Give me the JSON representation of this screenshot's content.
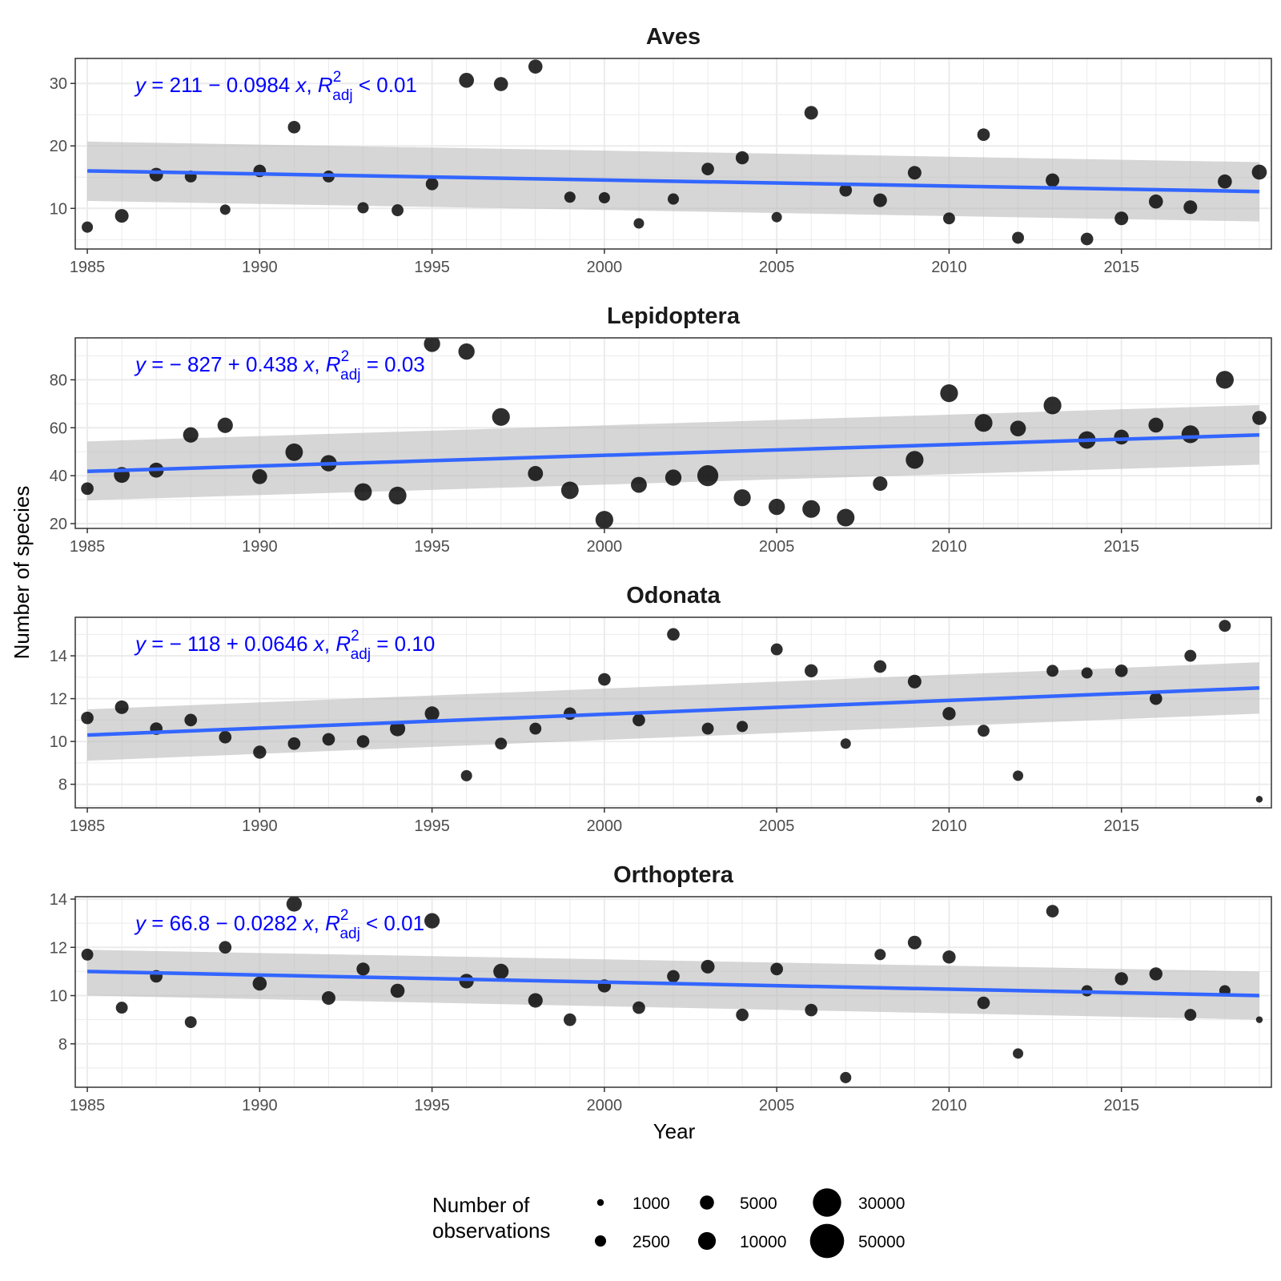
{
  "chart_data": {
    "type": "scatter",
    "layout": "faceted",
    "xlabel": "Year",
    "ylabel": "Number of species",
    "xlim": [
      1985,
      2019
    ],
    "xticks": [
      1985,
      1990,
      1995,
      2000,
      2005,
      2010,
      2015
    ],
    "point_color": "#000000",
    "fit_color": "#3366ff",
    "band_color": "#bdbdbd",
    "equation_color": "#0000ff",
    "legend": {
      "title_lines": [
        "Number of",
        "observations"
      ],
      "position": "bottom",
      "entries": [
        {
          "label": "1000",
          "value": 1000
        },
        {
          "label": "2500",
          "value": 2500
        },
        {
          "label": "5000",
          "value": 5000
        },
        {
          "label": "10000",
          "value": 10000
        },
        {
          "label": "30000",
          "value": 30000
        },
        {
          "label": "50000",
          "value": 50000
        }
      ]
    },
    "panels": [
      {
        "title": "Aves",
        "ylim": [
          3.5,
          34
        ],
        "yticks": [
          10,
          20,
          30
        ],
        "equation": {
          "y_sym": "y",
          "eq_mid": " = 211 − 0.0984 ",
          "x_sym": "x",
          "sep": ", ",
          "r_sym": "R",
          "r_sup": "2",
          "r_sub": "adj",
          "tail": " < 0.01"
        },
        "fit": {
          "x": [
            1985,
            2019
          ],
          "y": [
            16.0,
            12.7
          ],
          "lower": [
            11.2,
            7.9
          ],
          "upper": [
            20.7,
            17.4
          ]
        },
        "points": [
          {
            "x": 1985,
            "y": 7.0,
            "obs": 2500
          },
          {
            "x": 1986,
            "y": 8.8,
            "obs": 4500
          },
          {
            "x": 1987,
            "y": 15.4,
            "obs": 4500
          },
          {
            "x": 1988,
            "y": 15.1,
            "obs": 3000
          },
          {
            "x": 1989,
            "y": 9.8,
            "obs": 2000
          },
          {
            "x": 1990,
            "y": 16.0,
            "obs": 3500
          },
          {
            "x": 1991,
            "y": 23.0,
            "obs": 3500
          },
          {
            "x": 1992,
            "y": 15.1,
            "obs": 3000
          },
          {
            "x": 1993,
            "y": 10.1,
            "obs": 2500
          },
          {
            "x": 1994,
            "y": 9.7,
            "obs": 3000
          },
          {
            "x": 1995,
            "y": 13.9,
            "obs": 3500
          },
          {
            "x": 1996,
            "y": 30.5,
            "obs": 6000
          },
          {
            "x": 1997,
            "y": 29.9,
            "obs": 5000
          },
          {
            "x": 1998,
            "y": 32.7,
            "obs": 5000
          },
          {
            "x": 1999,
            "y": 11.8,
            "obs": 2500
          },
          {
            "x": 2000,
            "y": 11.7,
            "obs": 2500
          },
          {
            "x": 2001,
            "y": 7.6,
            "obs": 2000
          },
          {
            "x": 2002,
            "y": 11.5,
            "obs": 2500
          },
          {
            "x": 2003,
            "y": 16.3,
            "obs": 3500
          },
          {
            "x": 2004,
            "y": 18.1,
            "obs": 4000
          },
          {
            "x": 2005,
            "y": 8.6,
            "obs": 2000
          },
          {
            "x": 2006,
            "y": 25.3,
            "obs": 4500
          },
          {
            "x": 2007,
            "y": 12.9,
            "obs": 3500
          },
          {
            "x": 2008,
            "y": 11.3,
            "obs": 4500
          },
          {
            "x": 2009,
            "y": 15.7,
            "obs": 4500
          },
          {
            "x": 2010,
            "y": 8.4,
            "obs": 3000
          },
          {
            "x": 2011,
            "y": 21.8,
            "obs": 3500
          },
          {
            "x": 2012,
            "y": 5.3,
            "obs": 3000
          },
          {
            "x": 2013,
            "y": 14.5,
            "obs": 4500
          },
          {
            "x": 2014,
            "y": 5.1,
            "obs": 3500
          },
          {
            "x": 2015,
            "y": 8.4,
            "obs": 4500
          },
          {
            "x": 2016,
            "y": 11.1,
            "obs": 5000
          },
          {
            "x": 2017,
            "y": 10.2,
            "obs": 4500
          },
          {
            "x": 2018,
            "y": 14.3,
            "obs": 5000
          },
          {
            "x": 2019,
            "y": 15.8,
            "obs": 6000
          }
        ]
      },
      {
        "title": "Lepidoptera",
        "ylim": [
          18,
          97.5
        ],
        "yticks": [
          20,
          40,
          60,
          80
        ],
        "equation": {
          "y_sym": "y",
          "eq_mid": " = − 827 + 0.438 ",
          "x_sym": "x",
          "sep": ", ",
          "r_sym": "R",
          "r_sup": "2",
          "r_sub": "adj",
          "tail": " = 0.03"
        },
        "fit": {
          "x": [
            1985,
            2019
          ],
          "y": [
            41.8,
            57.0
          ],
          "lower": [
            29.7,
            44.6
          ],
          "upper": [
            54.3,
            69.5
          ]
        },
        "points": [
          {
            "x": 1985,
            "y": 34.6,
            "obs": 3500
          },
          {
            "x": 1986,
            "y": 40.3,
            "obs": 7000
          },
          {
            "x": 1987,
            "y": 42.3,
            "obs": 6000
          },
          {
            "x": 1988,
            "y": 57.0,
            "obs": 6500
          },
          {
            "x": 1989,
            "y": 61.0,
            "obs": 6500
          },
          {
            "x": 1990,
            "y": 39.6,
            "obs": 6000
          },
          {
            "x": 1991,
            "y": 49.8,
            "obs": 9500
          },
          {
            "x": 1992,
            "y": 45.2,
            "obs": 14000
          },
          {
            "x": 1993,
            "y": 33.2,
            "obs": 9500
          },
          {
            "x": 1994,
            "y": 31.7,
            "obs": 10000
          },
          {
            "x": 1995,
            "y": 95.0,
            "obs": 14000
          },
          {
            "x": 1996,
            "y": 91.8,
            "obs": 14000
          },
          {
            "x": 1997,
            "y": 64.5,
            "obs": 10000
          },
          {
            "x": 1998,
            "y": 40.9,
            "obs": 11000
          },
          {
            "x": 1999,
            "y": 33.9,
            "obs": 9500
          },
          {
            "x": 2000,
            "y": 21.6,
            "obs": 10000
          },
          {
            "x": 2001,
            "y": 36.2,
            "obs": 13000
          },
          {
            "x": 2002,
            "y": 39.2,
            "obs": 14000
          },
          {
            "x": 2003,
            "y": 40.0,
            "obs": 30000
          },
          {
            "x": 2004,
            "y": 30.8,
            "obs": 16000
          },
          {
            "x": 2005,
            "y": 27.0,
            "obs": 14000
          },
          {
            "x": 2006,
            "y": 26.1,
            "obs": 18000
          },
          {
            "x": 2007,
            "y": 22.5,
            "obs": 18000
          },
          {
            "x": 2008,
            "y": 36.7,
            "obs": 5500
          },
          {
            "x": 2009,
            "y": 46.6,
            "obs": 10000
          },
          {
            "x": 2010,
            "y": 74.4,
            "obs": 10000
          },
          {
            "x": 2011,
            "y": 62.0,
            "obs": 10000
          },
          {
            "x": 2012,
            "y": 59.7,
            "obs": 7000
          },
          {
            "x": 2013,
            "y": 69.3,
            "obs": 10000
          },
          {
            "x": 2014,
            "y": 54.9,
            "obs": 9500
          },
          {
            "x": 2015,
            "y": 56.1,
            "obs": 10500
          },
          {
            "x": 2016,
            "y": 61.1,
            "obs": 10500
          },
          {
            "x": 2017,
            "y": 57.3,
            "obs": 10000
          },
          {
            "x": 2018,
            "y": 80.0,
            "obs": 10000
          },
          {
            "x": 2019,
            "y": 64.1,
            "obs": 5000
          }
        ]
      },
      {
        "title": "Odonata",
        "ylim": [
          6.9,
          15.8
        ],
        "yticks": [
          8,
          10,
          12,
          14
        ],
        "equation": {
          "y_sym": "y",
          "eq_mid": " = − 118 + 0.0646 ",
          "x_sym": "x",
          "sep": ", ",
          "r_sym": "R",
          "r_sup": "2",
          "r_sub": "adj",
          "tail": " = 0.10"
        },
        "fit": {
          "x": [
            1985,
            2019
          ],
          "y": [
            10.3,
            12.5
          ],
          "lower": [
            9.1,
            11.3
          ],
          "upper": [
            11.5,
            13.7
          ]
        },
        "points": [
          {
            "x": 1985,
            "y": 11.1,
            "obs": 3500
          },
          {
            "x": 1986,
            "y": 11.6,
            "obs": 4500
          },
          {
            "x": 1987,
            "y": 10.6,
            "obs": 3500
          },
          {
            "x": 1988,
            "y": 11.0,
            "obs": 3500
          },
          {
            "x": 1989,
            "y": 10.2,
            "obs": 3500
          },
          {
            "x": 1990,
            "y": 9.5,
            "obs": 4000
          },
          {
            "x": 1991,
            "y": 9.9,
            "obs": 3500
          },
          {
            "x": 1992,
            "y": 10.1,
            "obs": 3500
          },
          {
            "x": 1993,
            "y": 10.0,
            "obs": 3500
          },
          {
            "x": 1994,
            "y": 10.6,
            "obs": 6500
          },
          {
            "x": 1995,
            "y": 11.3,
            "obs": 5500
          },
          {
            "x": 1996,
            "y": 8.4,
            "obs": 2500
          },
          {
            "x": 1997,
            "y": 9.9,
            "obs": 3000
          },
          {
            "x": 1998,
            "y": 10.6,
            "obs": 3000
          },
          {
            "x": 1999,
            "y": 11.3,
            "obs": 3500
          },
          {
            "x": 2000,
            "y": 12.9,
            "obs": 3500
          },
          {
            "x": 2001,
            "y": 11.0,
            "obs": 3500
          },
          {
            "x": 2002,
            "y": 15.0,
            "obs": 3500
          },
          {
            "x": 2003,
            "y": 10.6,
            "obs": 3000
          },
          {
            "x": 2004,
            "y": 10.7,
            "obs": 2500
          },
          {
            "x": 2005,
            "y": 14.3,
            "obs": 3000
          },
          {
            "x": 2006,
            "y": 13.3,
            "obs": 4000
          },
          {
            "x": 2007,
            "y": 9.9,
            "obs": 2000
          },
          {
            "x": 2008,
            "y": 13.5,
            "obs": 3500
          },
          {
            "x": 2009,
            "y": 12.8,
            "obs": 4500
          },
          {
            "x": 2010,
            "y": 11.3,
            "obs": 4000
          },
          {
            "x": 2011,
            "y": 10.5,
            "obs": 3000
          },
          {
            "x": 2012,
            "y": 8.4,
            "obs": 2000
          },
          {
            "x": 2013,
            "y": 13.3,
            "obs": 3000
          },
          {
            "x": 2014,
            "y": 13.2,
            "obs": 2500
          },
          {
            "x": 2015,
            "y": 13.3,
            "obs": 3500
          },
          {
            "x": 2016,
            "y": 12.0,
            "obs": 3500
          },
          {
            "x": 2017,
            "y": 14.0,
            "obs": 3000
          },
          {
            "x": 2018,
            "y": 15.4,
            "obs": 3000
          },
          {
            "x": 2019,
            "y": 7.3,
            "obs": 1000
          }
        ]
      },
      {
        "title": "Orthoptera",
        "ylim": [
          6.2,
          14.1
        ],
        "yticks": [
          8,
          10,
          12,
          14
        ],
        "equation": {
          "y_sym": "y",
          "eq_mid": " = 66.8 − 0.0282 ",
          "x_sym": "x",
          "sep": ", ",
          "r_sym": "R",
          "r_sup": "2",
          "r_sub": "adj",
          "tail": " < 0.01"
        },
        "fit": {
          "x": [
            1985,
            2019
          ],
          "y": [
            11.0,
            10.0
          ],
          "lower": [
            10.0,
            9.0
          ],
          "upper": [
            11.9,
            11.0
          ]
        },
        "points": [
          {
            "x": 1985,
            "y": 11.7,
            "obs": 3000
          },
          {
            "x": 1986,
            "y": 9.5,
            "obs": 3000
          },
          {
            "x": 1987,
            "y": 10.8,
            "obs": 3500
          },
          {
            "x": 1988,
            "y": 8.9,
            "obs": 3000
          },
          {
            "x": 1989,
            "y": 12.0,
            "obs": 3500
          },
          {
            "x": 1990,
            "y": 10.5,
            "obs": 5000
          },
          {
            "x": 1991,
            "y": 13.8,
            "obs": 6500
          },
          {
            "x": 1992,
            "y": 9.9,
            "obs": 4500
          },
          {
            "x": 1993,
            "y": 11.1,
            "obs": 4000
          },
          {
            "x": 1994,
            "y": 10.2,
            "obs": 5000
          },
          {
            "x": 1995,
            "y": 13.1,
            "obs": 6500
          },
          {
            "x": 1996,
            "y": 10.6,
            "obs": 5500
          },
          {
            "x": 1997,
            "y": 11.0,
            "obs": 6500
          },
          {
            "x": 1998,
            "y": 9.8,
            "obs": 5500
          },
          {
            "x": 1999,
            "y": 9.0,
            "obs": 3500
          },
          {
            "x": 2000,
            "y": 10.4,
            "obs": 4000
          },
          {
            "x": 2001,
            "y": 9.5,
            "obs": 3500
          },
          {
            "x": 2002,
            "y": 10.8,
            "obs": 3500
          },
          {
            "x": 2003,
            "y": 11.2,
            "obs": 4500
          },
          {
            "x": 2004,
            "y": 9.2,
            "obs": 3500
          },
          {
            "x": 2005,
            "y": 11.1,
            "obs": 3500
          },
          {
            "x": 2006,
            "y": 9.4,
            "obs": 3500
          },
          {
            "x": 2007,
            "y": 6.6,
            "obs": 2500
          },
          {
            "x": 2008,
            "y": 11.7,
            "obs": 2500
          },
          {
            "x": 2009,
            "y": 12.2,
            "obs": 4500
          },
          {
            "x": 2010,
            "y": 11.6,
            "obs": 4000
          },
          {
            "x": 2011,
            "y": 9.7,
            "obs": 3500
          },
          {
            "x": 2012,
            "y": 7.6,
            "obs": 2000
          },
          {
            "x": 2013,
            "y": 13.5,
            "obs": 3500
          },
          {
            "x": 2014,
            "y": 10.2,
            "obs": 2500
          },
          {
            "x": 2015,
            "y": 10.7,
            "obs": 4000
          },
          {
            "x": 2016,
            "y": 10.9,
            "obs": 4000
          },
          {
            "x": 2017,
            "y": 9.2,
            "obs": 3000
          },
          {
            "x": 2018,
            "y": 10.2,
            "obs": 2500
          },
          {
            "x": 2019,
            "y": 9.0,
            "obs": 1000
          }
        ]
      }
    ]
  }
}
